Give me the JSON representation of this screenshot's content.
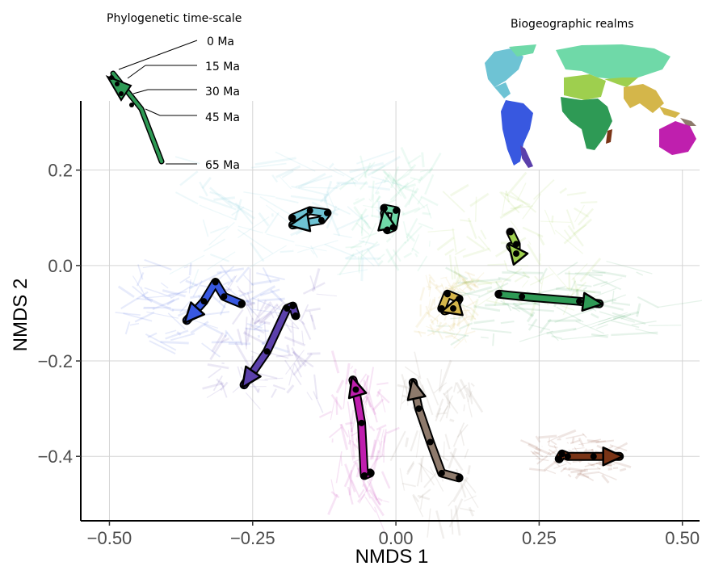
{
  "chart_data": {
    "type": "scatter",
    "xlabel": "NMDS 1",
    "ylabel": "NMDS 2",
    "xlim": [
      -0.55,
      0.53
    ],
    "ylim": [
      -0.535,
      0.345
    ],
    "xticks": [
      -0.5,
      -0.25,
      0.0,
      0.25,
      0.5
    ],
    "xtick_labels": [
      "−0.50",
      "−0.25",
      "0.00",
      "0.25",
      "0.50"
    ],
    "yticks": [
      0.2,
      0.0,
      -0.2,
      -0.4
    ],
    "ytick_labels": [
      "0.2",
      "0.0",
      "−0.2",
      "−0.4"
    ],
    "grid": true,
    "timescale": {
      "title": "Phylogenetic time-scale",
      "labels": [
        "0 Ma",
        "15 Ma",
        "30 Ma",
        "45 Ma",
        "65 Ma"
      ]
    },
    "map_title": "Biogeographic realms",
    "series": [
      {
        "color": "#6ec3d4",
        "cloud": [
          [
            -0.35,
            0.12
          ],
          [
            -0.12,
            0.18
          ],
          [
            -0.25,
            0.02
          ]
        ],
        "path": [
          [
            -0.18,
            0.1
          ],
          [
            -0.15,
            0.115
          ],
          [
            -0.12,
            0.11
          ],
          [
            -0.13,
            0.095
          ],
          [
            -0.18,
            0.085
          ]
        ]
      },
      {
        "color": "#6fd9a8",
        "cloud": [
          [
            -0.05,
            0.2
          ],
          [
            0.05,
            0.15
          ],
          [
            0.0,
            0.05
          ]
        ],
        "path": [
          [
            -0.02,
            0.12
          ],
          [
            0.0,
            0.115
          ],
          [
            -0.005,
            0.08
          ],
          [
            -0.015,
            0.075
          ],
          [
            -0.02,
            0.11
          ]
        ]
      },
      {
        "color": "#9ecf4e",
        "cloud": [
          [
            0.15,
            0.12
          ],
          [
            0.32,
            0.0
          ],
          [
            0.2,
            -0.05
          ]
        ],
        "path": [
          [
            0.2,
            0.07
          ],
          [
            0.21,
            0.045
          ],
          [
            0.21,
            0.025
          ],
          [
            0.2,
            0.04
          ]
        ]
      },
      {
        "color": "#d4b64a",
        "cloud": [
          [
            0.05,
            -0.05
          ],
          [
            0.1,
            -0.15
          ],
          [
            0.12,
            -0.1
          ]
        ],
        "path": [
          [
            0.08,
            -0.09
          ],
          [
            0.09,
            -0.06
          ],
          [
            0.11,
            -0.07
          ],
          [
            0.1,
            -0.09
          ],
          [
            0.085,
            -0.095
          ]
        ]
      },
      {
        "color": "#2e9a55",
        "cloud": [
          [
            0.18,
            -0.05
          ],
          [
            0.45,
            -0.1
          ],
          [
            0.25,
            -0.15
          ]
        ],
        "path": [
          [
            0.18,
            -0.06
          ],
          [
            0.22,
            -0.065
          ],
          [
            0.32,
            -0.075
          ],
          [
            0.355,
            -0.08
          ]
        ]
      },
      {
        "color": "#3858e0",
        "cloud": [
          [
            -0.45,
            -0.1
          ],
          [
            -0.3,
            -0.05
          ],
          [
            -0.38,
            -0.15
          ]
        ],
        "path": [
          [
            -0.27,
            -0.08
          ],
          [
            -0.3,
            -0.065
          ],
          [
            -0.315,
            -0.035
          ],
          [
            -0.335,
            -0.075
          ],
          [
            -0.365,
            -0.115
          ]
        ]
      },
      {
        "color": "#5b40ab",
        "cloud": [
          [
            -0.25,
            -0.12
          ],
          [
            -0.2,
            -0.25
          ],
          [
            -0.3,
            -0.2
          ]
        ],
        "path": [
          [
            -0.175,
            -0.105
          ],
          [
            -0.18,
            -0.085
          ],
          [
            -0.19,
            -0.09
          ],
          [
            -0.225,
            -0.18
          ],
          [
            -0.265,
            -0.25
          ]
        ]
      },
      {
        "color": "#bf1fae",
        "cloud": [
          [
            -0.08,
            -0.3
          ],
          [
            -0.03,
            -0.42
          ],
          [
            -0.1,
            -0.45
          ]
        ],
        "path": [
          [
            -0.045,
            -0.435
          ],
          [
            -0.055,
            -0.44
          ],
          [
            -0.06,
            -0.33
          ],
          [
            -0.07,
            -0.26
          ],
          [
            -0.075,
            -0.24
          ]
        ]
      },
      {
        "color": "#8e7a6c",
        "cloud": [
          [
            0.05,
            -0.35
          ],
          [
            0.12,
            -0.45
          ]
        ],
        "path": [
          [
            0.11,
            -0.445
          ],
          [
            0.08,
            -0.435
          ],
          [
            0.06,
            -0.37
          ],
          [
            0.04,
            -0.3
          ],
          [
            0.03,
            -0.245
          ]
        ]
      },
      {
        "color": "#7a3416",
        "cloud": [
          [
            0.3,
            -0.4
          ]
        ],
        "path": [
          [
            0.285,
            -0.405
          ],
          [
            0.29,
            -0.395
          ],
          [
            0.3,
            -0.4
          ],
          [
            0.345,
            -0.4
          ],
          [
            0.39,
            -0.4
          ]
        ]
      }
    ]
  }
}
